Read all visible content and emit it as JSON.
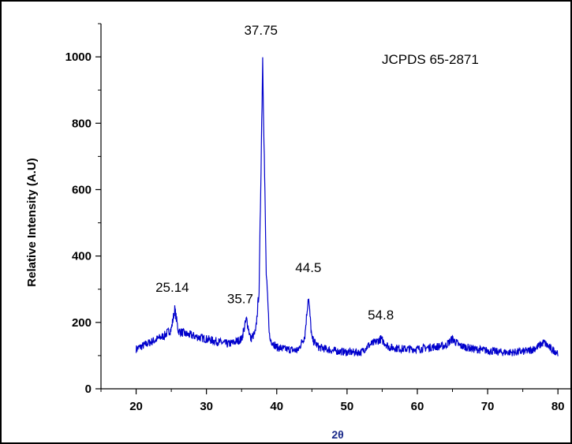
{
  "chart_data": {
    "type": "line",
    "title": "",
    "xlabel": "2θ",
    "ylabel": "Relative Intensity (A.U)",
    "xlim": [
      15,
      82
    ],
    "ylim": [
      0,
      1100
    ],
    "x_ticks": [
      20,
      30,
      40,
      50,
      60,
      70,
      80
    ],
    "y_ticks": [
      0,
      200,
      400,
      600,
      800,
      1000
    ],
    "grid": false,
    "legend": "none",
    "reference_label": "JCPDS   65-2871",
    "annotations": [
      {
        "text": "25.14",
        "x": 25.14,
        "y": 245
      },
      {
        "text": "35.7",
        "x": 35.7,
        "y": 210
      },
      {
        "text": "37.75",
        "x": 37.75,
        "y": 1000
      },
      {
        "text": "44.5",
        "x": 44.5,
        "y": 280
      },
      {
        "text": "54.8",
        "x": 54.8,
        "y": 150
      }
    ],
    "series": [
      {
        "color": "#0000cc",
        "x": [
          20,
          21,
          22,
          23,
          24,
          25,
          25.5,
          26,
          27,
          28,
          29,
          30,
          31,
          32,
          33,
          34,
          35,
          35.7,
          36.3,
          37,
          37.5,
          38,
          38.5,
          39,
          40,
          41,
          42,
          43,
          44,
          44.5,
          45,
          46,
          48,
          50,
          52,
          53,
          54,
          54.8,
          56,
          58,
          60,
          62,
          64,
          65,
          66,
          68,
          70,
          72,
          74,
          76,
          77,
          78,
          79,
          80
        ],
        "y": [
          120,
          130,
          140,
          150,
          160,
          180,
          240,
          175,
          165,
          160,
          155,
          150,
          145,
          140,
          135,
          140,
          150,
          210,
          150,
          170,
          300,
          1000,
          350,
          150,
          125,
          120,
          118,
          115,
          160,
          280,
          150,
          125,
          115,
          110,
          110,
          130,
          140,
          150,
          125,
          120,
          120,
          125,
          130,
          150,
          130,
          120,
          115,
          110,
          110,
          115,
          125,
          140,
          120,
          110
        ]
      }
    ]
  }
}
